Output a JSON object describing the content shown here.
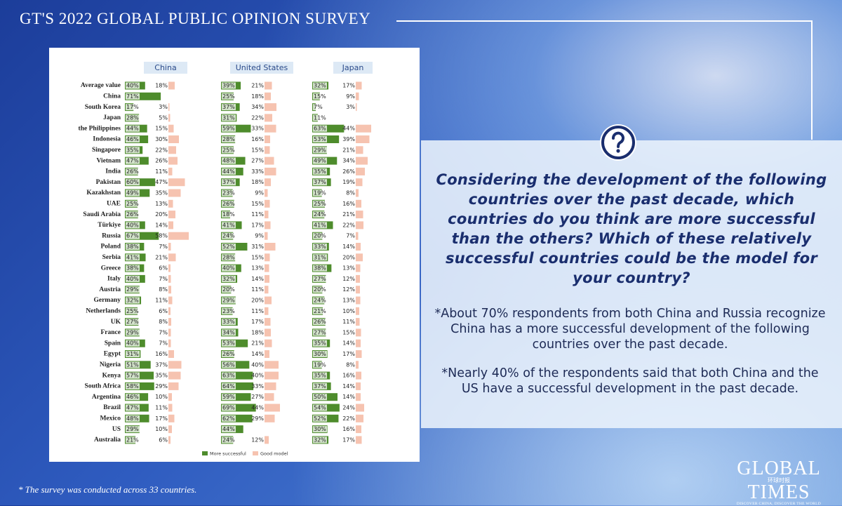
{
  "header": {
    "title": "GT'S 2022 GLOBAL PUBLIC OPINION SURVEY"
  },
  "chart_data": {
    "type": "bar",
    "categories": [
      "Average value",
      "China",
      "South Korea",
      "Japan",
      "the Philippines",
      "Indonesia",
      "Singapore",
      "Vietnam",
      "India",
      "Pakistan",
      "Kazakhstan",
      "UAE",
      "Saudi Arabia",
      "Türkiye",
      "Russia",
      "Poland",
      "Serbia",
      "Greece",
      "Italy",
      "Austria",
      "Germany",
      "Netherlands",
      "UK",
      "France",
      "Spain",
      "Egypt",
      "Nigeria",
      "Kenya",
      "South Africa",
      "Argentina",
      "Brazil",
      "Mexico",
      "US",
      "Australia"
    ],
    "series": [
      {
        "name": "More successful",
        "color": "#4e8c2c"
      },
      {
        "name": "Good model",
        "color": "#f6c3b0"
      }
    ],
    "panels": [
      {
        "title": "China",
        "series": [
          {
            "values": [
              40,
              71,
              17,
              28,
              44,
              46,
              35,
              47,
              26,
              60,
              49,
              25,
              26,
              40,
              67,
              38,
              41,
              38,
              40,
              29,
              32,
              25,
              27,
              29,
              40,
              31,
              51,
              57,
              58,
              46,
              47,
              48,
              29,
              21
            ],
            "value_labels": [
              "40%",
              "71%",
              "17%",
              "28%",
              "44%",
              "46%",
              "35%",
              "47%",
              "26%",
              "60%",
              "49%",
              "25%",
              "26%",
              "40%",
              "67%",
              "38%",
              "41%",
              "38%",
              "40%",
              "29%",
              "32%",
              "25%",
              "27%",
              "29%",
              "40%",
              "31%",
              "51%",
              "57%",
              "58%",
              "46%",
              "47%",
              "48%",
              "29%",
              "21%"
            ]
          },
          {
            "values": [
              18,
              null,
              3,
              5,
              15,
              30,
              22,
              26,
              11,
              47,
              35,
              13,
              20,
              14,
              58,
              7,
              21,
              6,
              7,
              8,
              11,
              6,
              8,
              7,
              7,
              16,
              37,
              35,
              29,
              10,
              11,
              17,
              10,
              6
            ],
            "value_labels": [
              "18%",
              null,
              "3%",
              "5%",
              "15%",
              "30%",
              "22%",
              "26%",
              "11%",
              "47%",
              "35%",
              "13%",
              "20%",
              "14%",
              "58%",
              "7%",
              "21%",
              "6%",
              "7%",
              "8%",
              "11%",
              "6%",
              "8%",
              "7%",
              "7%",
              "16%",
              "37%",
              "35%",
              "29%",
              "10%",
              "11%",
              "17%",
              "10%",
              "6%"
            ]
          }
        ]
      },
      {
        "title": "United States",
        "series": [
          {
            "values": [
              39,
              25,
              37,
              31,
              59,
              28,
              25,
              48,
              44,
              37,
              23,
              26,
              18,
              41,
              24,
              52,
              28,
              40,
              32,
              20,
              29,
              23,
              33,
              34,
              53,
              26,
              56,
              63,
              64,
              59,
              69,
              62,
              44,
              24
            ],
            "value_labels": [
              "39%",
              "25%",
              "37%",
              "31%",
              "59%",
              "28%",
              "25%",
              "48%",
              "44%",
              "37%",
              "23%",
              "26%",
              "18%",
              "41%",
              "24%",
              "52%",
              "28%",
              "40%",
              "32%",
              "20%",
              "29%",
              "23%",
              "33%",
              "34%",
              "53%",
              "26%",
              "56%",
              "63%",
              "64%",
              "59%",
              "69%",
              "62%",
              "44%",
              "24%"
            ]
          },
          {
            "values": [
              21,
              18,
              34,
              22,
              33,
              16,
              15,
              27,
              33,
              18,
              9,
              15,
              11,
              17,
              9,
              31,
              15,
              13,
              14,
              11,
              20,
              11,
              17,
              18,
              21,
              14,
              40,
              40,
              33,
              27,
              44,
              29,
              null,
              12
            ],
            "value_labels": [
              "21%",
              "18%",
              "34%",
              "22%",
              "33%",
              "16%",
              "15%",
              "27%",
              "33%",
              "18%",
              "9%",
              "15%",
              "11%",
              "17%",
              "9%",
              "31%",
              "15%",
              "13%",
              "14%",
              "11%",
              "20%",
              "11%",
              "17%",
              "18%",
              "21%",
              "14%",
              "40%",
              "40%",
              "33%",
              "27%",
              "44%",
              "29%",
              null,
              "12%"
            ]
          }
        ]
      },
      {
        "title": "Japan",
        "series": [
          {
            "values": [
              32,
              15,
              7,
              11,
              63,
              53,
              29,
              49,
              35,
              37,
              19,
              25,
              24,
              41,
              20,
              33,
              31,
              38,
              27,
              20,
              24,
              21,
              26,
              27,
              35,
              30,
              19,
              35,
              37,
              50,
              54,
              52,
              30,
              32
            ],
            "value_labels": [
              "32%",
              "15%",
              "7%",
              "11%",
              "63%",
              "53%",
              "29%",
              "49%",
              "35%",
              "37%",
              "19%",
              "25%",
              "24%",
              "41%",
              "20%",
              "33%",
              "31%",
              "38%",
              "27%",
              "20%",
              "24%",
              "21%",
              "26%",
              "27%",
              "35%",
              "30%",
              "19%",
              "35%",
              "37%",
              "50%",
              "54%",
              "52%",
              "30%",
              "32%"
            ]
          },
          {
            "values": [
              17,
              9,
              3,
              null,
              44,
              39,
              21,
              34,
              26,
              19,
              8,
              16,
              21,
              22,
              7,
              14,
              20,
              13,
              12,
              12,
              13,
              10,
              11,
              15,
              14,
              17,
              8,
              16,
              14,
              14,
              24,
              22,
              16,
              17
            ],
            "value_labels": [
              "17%",
              "9%",
              "3%",
              null,
              "44%",
              "39%",
              "21%",
              "34%",
              "26%",
              "19%",
              "8%",
              "16%",
              "21%",
              "22%",
              "7%",
              "14%",
              "20%",
              "13%",
              "12%",
              "12%",
              "13%",
              "10%",
              "11%",
              "15%",
              "14%",
              "17%",
              "8%",
              "16%",
              "14%",
              "14%",
              "24%",
              "22%",
              "16%",
              "17%"
            ]
          }
        ]
      }
    ]
  },
  "question": "Considering the development of the following countries over the past decade, which countries do you think are more successful than the others? Which of these relatively successful countries could be the model for your country?",
  "notes": [
    "*About 70% respondents from both China and Russia recognize China has a more successful development of the following countries over the past decade.",
    "*Nearly 40% of the respondents said that both China and the US have a successful development in the past decade."
  ],
  "footnote": "* The survey was conducted across 33 countries.",
  "logo": {
    "name_top": "GLOBAL",
    "name_bottom": "TIMES",
    "chinese": "环球时报",
    "tagline": "DISCOVER CHINA, DISCOVER THE WORLD"
  }
}
